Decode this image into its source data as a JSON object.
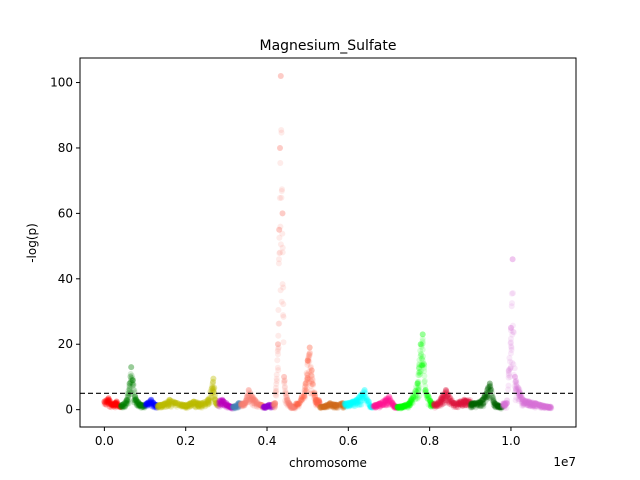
{
  "chart_data": {
    "type": "scatter",
    "title": "Magnesium_Sulfate",
    "xlabel": "chromosome",
    "ylabel": "-log(p)",
    "x_offset_label": "1e7",
    "xlim": [
      -600000,
      11600000
    ],
    "ylim": [
      -5.3,
      107.5
    ],
    "x_ticks": [
      0,
      2000000,
      4000000,
      6000000,
      8000000,
      10000000
    ],
    "x_tick_labels": [
      "0.0",
      "0.2",
      "0.4",
      "0.6",
      "0.8",
      "1.0"
    ],
    "y_ticks": [
      0,
      20,
      40,
      60,
      80,
      100
    ],
    "y_tick_labels": [
      "0",
      "20",
      "40",
      "60",
      "80",
      "100"
    ],
    "threshold": 5,
    "threshold_style": "dashed",
    "legend": "none",
    "grid": false,
    "point_alpha": 0.15,
    "series": [
      {
        "color": "#ff0000",
        "x_range": [
          0,
          400000
        ],
        "points": [
          [
            0,
            2.5
          ],
          [
            100000,
            3.5
          ],
          [
            200000,
            1.5
          ],
          [
            300000,
            2.5
          ],
          [
            380000,
            1.0
          ]
        ]
      },
      {
        "color": "#008000",
        "x_range": [
          400000,
          1000000
        ],
        "points": [
          [
            450000,
            1.5
          ],
          [
            550000,
            3.0
          ],
          [
            620000,
            8.0
          ],
          [
            660000,
            13.0
          ],
          [
            700000,
            9.0
          ],
          [
            780000,
            3.0
          ],
          [
            900000,
            1.5
          ]
        ]
      },
      {
        "color": "#0000ff",
        "x_range": [
          1000000,
          1300000
        ],
        "points": [
          [
            1050000,
            2.0
          ],
          [
            1150000,
            3.0
          ],
          [
            1250000,
            1.5
          ]
        ]
      },
      {
        "color": "#bfbf00",
        "x_range": [
          1300000,
          2800000
        ],
        "points": [
          [
            1400000,
            1.5
          ],
          [
            1600000,
            3.0
          ],
          [
            1800000,
            2.0
          ],
          [
            2000000,
            1.5
          ],
          [
            2200000,
            2.5
          ],
          [
            2400000,
            2.0
          ],
          [
            2550000,
            3.0
          ],
          [
            2680000,
            9.5
          ],
          [
            2750000,
            2.0
          ]
        ]
      },
      {
        "color": "#bf00bf",
        "x_range": [
          2800000,
          3150000
        ],
        "points": [
          [
            2900000,
            3.0
          ],
          [
            3000000,
            2.0
          ],
          [
            3100000,
            1.0
          ]
        ]
      },
      {
        "color": "#4682b4",
        "x_range": [
          3150000,
          3350000
        ],
        "points": [
          [
            3200000,
            1.0
          ],
          [
            3300000,
            2.0
          ]
        ]
      },
      {
        "color": "#fa8072",
        "x_range": [
          3350000,
          3900000
        ],
        "points": [
          [
            3450000,
            2.0
          ],
          [
            3550000,
            6.0
          ],
          [
            3700000,
            3.0
          ],
          [
            3850000,
            1.5
          ]
        ]
      },
      {
        "color": "#9400d3",
        "x_range": [
          3900000,
          4150000
        ],
        "points": [
          [
            3950000,
            1.0
          ],
          [
            4050000,
            1.5
          ]
        ]
      },
      {
        "color": "#fa8072",
        "x_range": [
          4150000,
          4700000
        ],
        "points": [
          [
            4200000,
            2.0
          ],
          [
            4270000,
            20.0
          ],
          [
            4300000,
            55.0
          ],
          [
            4320000,
            80.0
          ],
          [
            4340000,
            102.0
          ],
          [
            4380000,
            60.0
          ],
          [
            4420000,
            10.0
          ],
          [
            4500000,
            3.0
          ],
          [
            4600000,
            1.0
          ]
        ]
      },
      {
        "color": "#ff6347",
        "x_range": [
          4700000,
          5300000
        ],
        "points": [
          [
            4800000,
            2.0
          ],
          [
            4950000,
            8.0
          ],
          [
            5000000,
            15.0
          ],
          [
            5050000,
            19.0
          ],
          [
            5100000,
            12.0
          ],
          [
            5200000,
            3.0
          ]
        ]
      },
      {
        "color": "#d2691e",
        "x_range": [
          5300000,
          5900000
        ],
        "points": [
          [
            5400000,
            1.0
          ],
          [
            5550000,
            2.0
          ],
          [
            5700000,
            1.5
          ],
          [
            5850000,
            2.0
          ]
        ]
      },
      {
        "color": "#00ffff",
        "x_range": [
          5900000,
          6600000
        ],
        "points": [
          [
            6000000,
            2.0
          ],
          [
            6200000,
            3.0
          ],
          [
            6400000,
            6.0
          ],
          [
            6550000,
            1.0
          ]
        ]
      },
      {
        "color": "#ff1493",
        "x_range": [
          6600000,
          7200000
        ],
        "points": [
          [
            6700000,
            1.5
          ],
          [
            6850000,
            2.5
          ],
          [
            7000000,
            4.0
          ],
          [
            7150000,
            1.0
          ]
        ]
      },
      {
        "color": "#00ff00",
        "x_range": [
          7200000,
          8100000
        ],
        "points": [
          [
            7300000,
            1.0
          ],
          [
            7500000,
            2.0
          ],
          [
            7700000,
            8.0
          ],
          [
            7780000,
            20.0
          ],
          [
            7830000,
            23.0
          ],
          [
            7900000,
            6.0
          ],
          [
            8050000,
            2.0
          ]
        ]
      },
      {
        "color": "#dc143c",
        "x_range": [
          8100000,
          9000000
        ],
        "points": [
          [
            8200000,
            2.0
          ],
          [
            8400000,
            6.0
          ],
          [
            8600000,
            2.0
          ],
          [
            8850000,
            3.0
          ]
        ]
      },
      {
        "color": "#006400",
        "x_range": [
          9000000,
          9800000
        ],
        "points": [
          [
            9100000,
            2.0
          ],
          [
            9300000,
            3.0
          ],
          [
            9480000,
            8.0
          ],
          [
            9600000,
            2.0
          ],
          [
            9750000,
            1.0
          ]
        ]
      },
      {
        "color": "#da70d6",
        "x_range": [
          9800000,
          11000000
        ],
        "points": [
          [
            9900000,
            2.0
          ],
          [
            10000000,
            25.0
          ],
          [
            10040000,
            46.0
          ],
          [
            10100000,
            10.0
          ],
          [
            10300000,
            3.0
          ],
          [
            10600000,
            2.0
          ],
          [
            10900000,
            1.0
          ]
        ]
      }
    ]
  }
}
